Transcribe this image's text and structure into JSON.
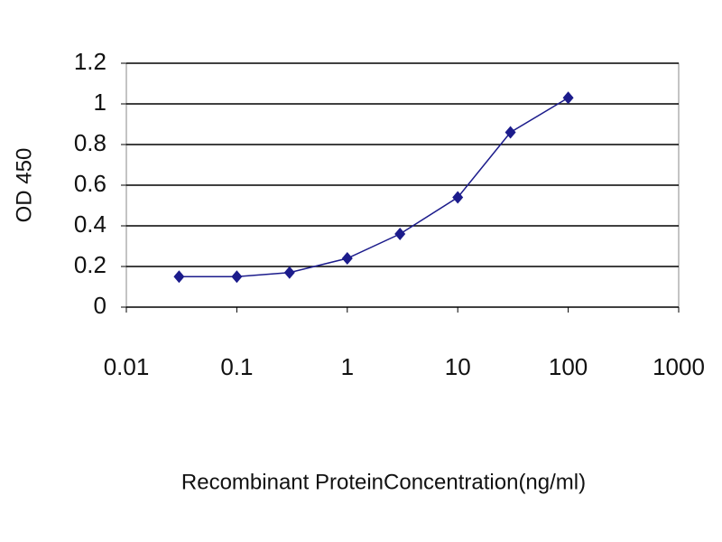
{
  "chart_data": {
    "type": "line",
    "x_label": "Recombinant ProteinConcentration(ng/ml)",
    "y_label": "OD 450",
    "x": [
      0.03,
      0.1,
      0.3,
      1,
      3,
      10,
      30,
      100
    ],
    "series": [
      {
        "color": "#1c1c8c",
        "values": [
          0.15,
          0.15,
          0.17,
          0.24,
          0.36,
          0.54,
          0.86,
          1.03
        ]
      }
    ],
    "xlim": [
      0.01,
      1000
    ],
    "xticks": [
      0.01,
      0.1,
      1,
      10,
      100,
      1000
    ],
    "xlog": true,
    "ylim": [
      0,
      1.2
    ],
    "yticks": [
      0,
      0.2,
      0.4,
      0.6,
      0.8,
      1,
      1.2
    ],
    "grid": true
  }
}
